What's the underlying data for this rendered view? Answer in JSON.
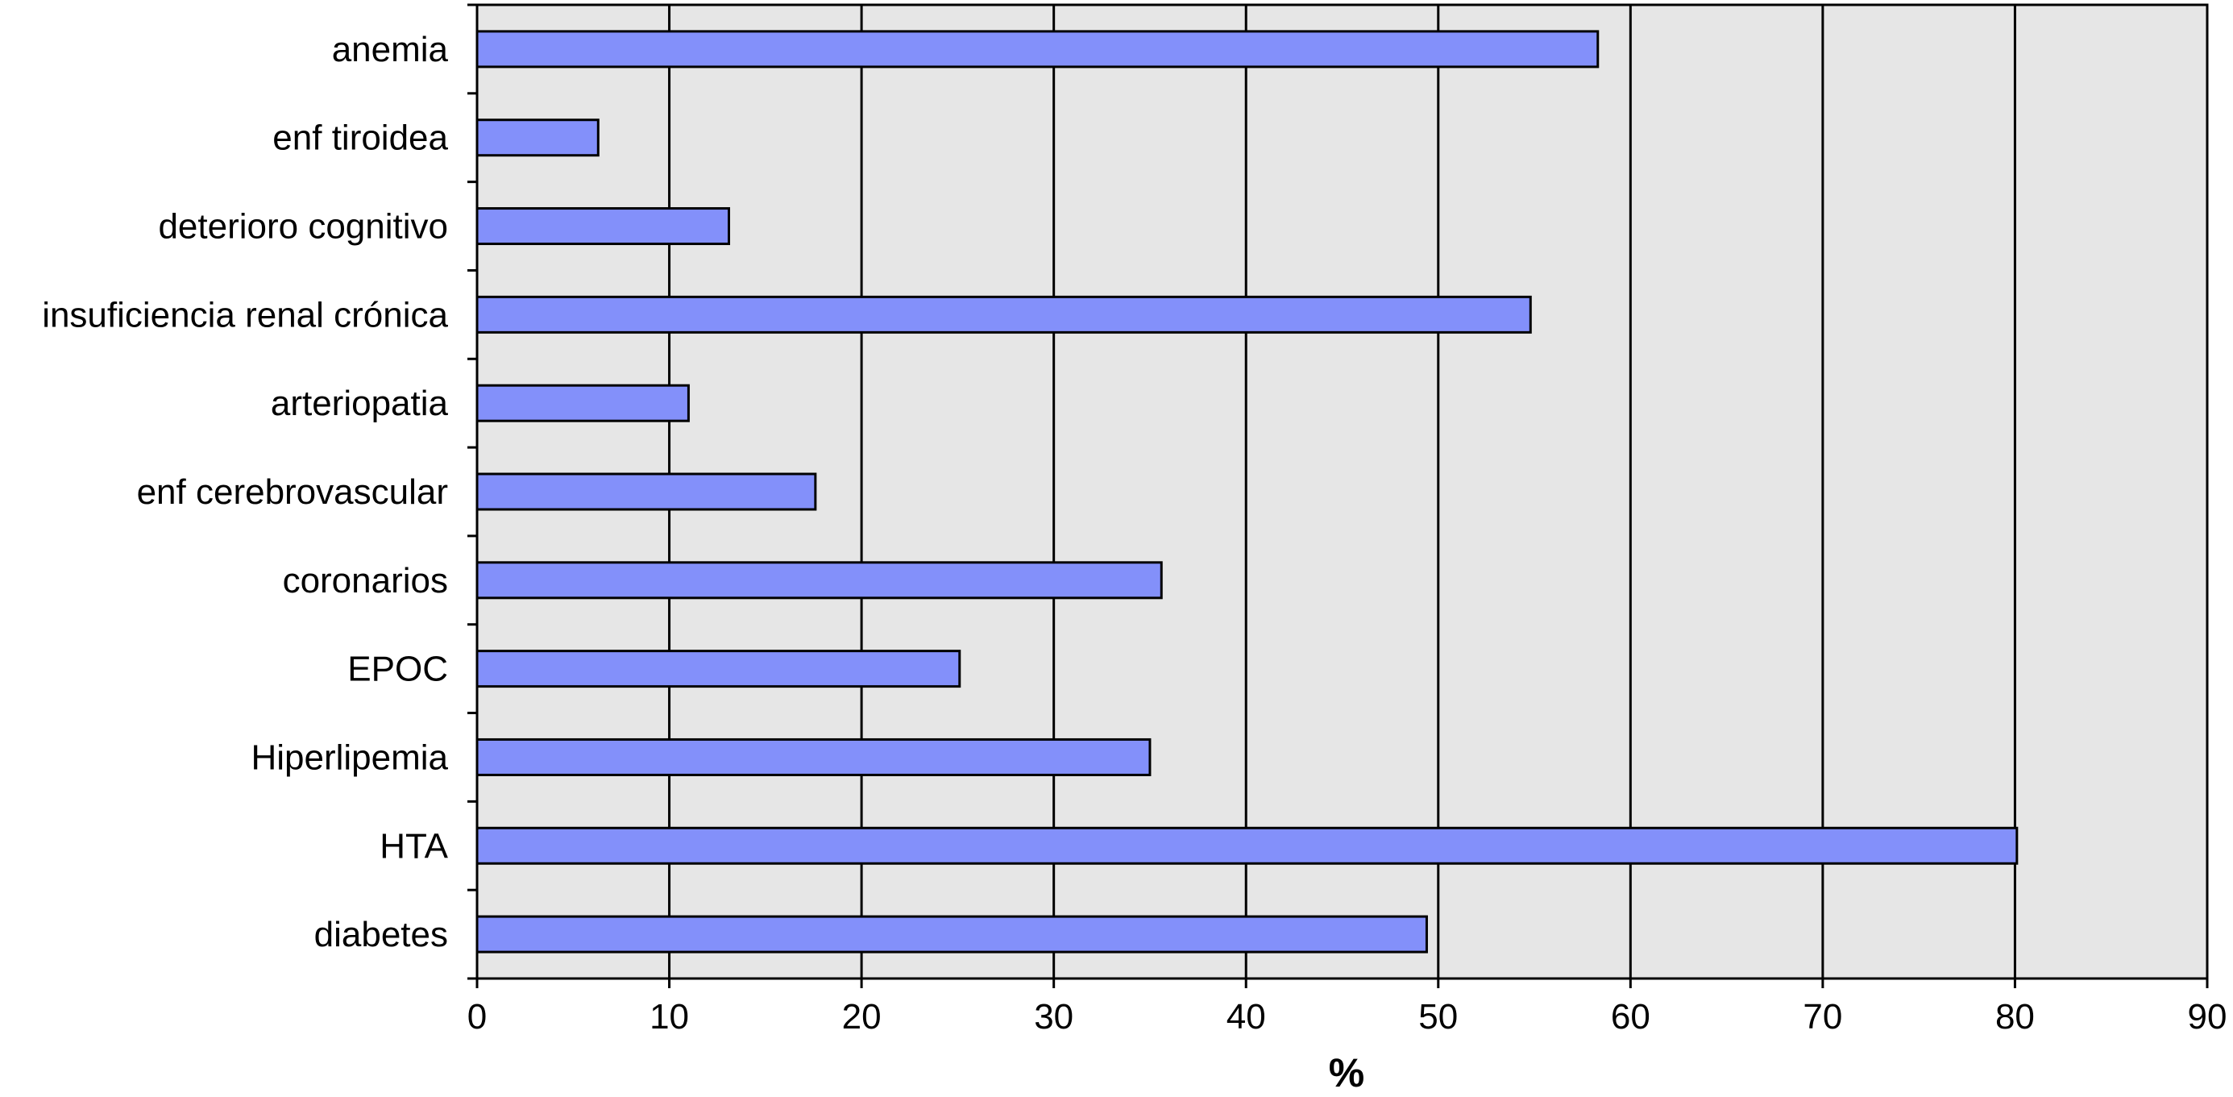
{
  "chart_data": {
    "type": "bar",
    "orientation": "horizontal",
    "categories": [
      "anemia",
      "enf tiroidea",
      "deterioro cognitivo",
      "insuficiencia renal crónica",
      "arteriopatia",
      "enf cerebrovascular",
      "coronarios",
      "EPOC",
      "Hiperlipemia",
      "HTA",
      "diabetes"
    ],
    "values": [
      58.3,
      6.3,
      13.1,
      54.8,
      11.0,
      17.6,
      35.6,
      25.1,
      35.0,
      80.1,
      49.4
    ],
    "xlabel": "%",
    "ylabel": "",
    "xlim": [
      0,
      90
    ],
    "xticks": [
      "0",
      "10",
      "20",
      "30",
      "40",
      "50",
      "60",
      "70",
      "80",
      "90"
    ],
    "grid": "vertical",
    "legend": "none",
    "colors": {
      "bar_fill": "#8390fa",
      "bar_stroke": "#000000",
      "plot_background": "#e6e6e6",
      "grid": "#000000"
    }
  }
}
